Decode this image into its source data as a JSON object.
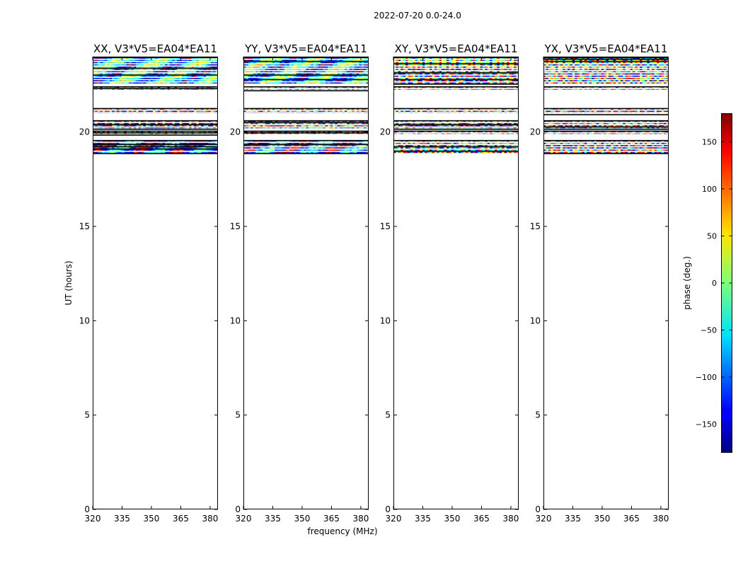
{
  "chart_data": {
    "type": "heatmap",
    "suptitle": "2022-07-20 0.0-24.0",
    "xlabel": "frequency (MHz)",
    "ylabel": "UT (hours)",
    "xlim": [
      320,
      384
    ],
    "ylim": [
      0,
      24
    ],
    "xticks": [
      320,
      335,
      350,
      365,
      380
    ],
    "yticks": [
      0,
      5,
      10,
      15,
      20
    ],
    "panels": [
      {
        "title": "XX, V3*V5=EA04*EA11",
        "bands": [
          {
            "start": 18.85,
            "end": 19.55,
            "phase_bias": -120
          },
          {
            "start": 19.9,
            "end": 20.05
          },
          {
            "start": 20.2,
            "end": 20.6
          },
          {
            "start": 21.0,
            "end": 21.25
          },
          {
            "start": 22.25,
            "end": 22.4
          },
          {
            "start": 22.55,
            "end": 23.95,
            "phase_bias": -60
          }
        ]
      },
      {
        "title": "YY, V3*V5=EA04*EA11",
        "bands": [
          {
            "start": 18.85,
            "end": 19.55,
            "phase_bias": -120
          },
          {
            "start": 19.9,
            "end": 20.05
          },
          {
            "start": 20.2,
            "end": 20.6
          },
          {
            "start": 21.0,
            "end": 21.25
          },
          {
            "start": 22.25,
            "end": 22.4
          },
          {
            "start": 22.55,
            "end": 23.95,
            "phase_bias": -60
          }
        ]
      },
      {
        "title": "XY, V3*V5=EA04*EA11",
        "bands": [
          {
            "start": 18.85,
            "end": 19.55
          },
          {
            "start": 19.9,
            "end": 20.05
          },
          {
            "start": 20.2,
            "end": 20.6
          },
          {
            "start": 21.0,
            "end": 21.25
          },
          {
            "start": 22.25,
            "end": 22.4
          },
          {
            "start": 22.55,
            "end": 23.95
          }
        ]
      },
      {
        "title": "YX, V3*V5=EA04*EA11",
        "bands": [
          {
            "start": 18.85,
            "end": 19.55
          },
          {
            "start": 19.9,
            "end": 20.05
          },
          {
            "start": 20.2,
            "end": 20.6
          },
          {
            "start": 21.0,
            "end": 21.25
          },
          {
            "start": 22.25,
            "end": 22.4
          },
          {
            "start": 22.55,
            "end": 23.95
          }
        ]
      }
    ],
    "colorbar": {
      "label": "phase (deg.)",
      "range": [
        -180,
        180
      ],
      "ticks": [
        150,
        100,
        50,
        0,
        -50,
        -100,
        -150
      ],
      "tick_labels": [
        "150",
        "100",
        "50",
        "0",
        "−50",
        "−100",
        "−150"
      ],
      "colormap": "jet"
    }
  }
}
